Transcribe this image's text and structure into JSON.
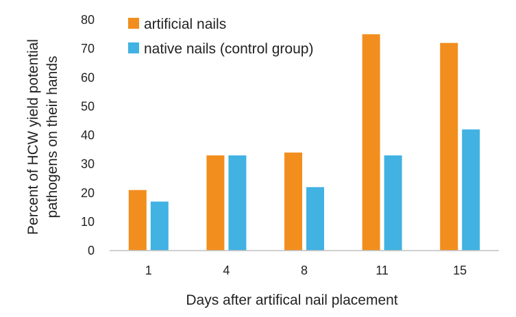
{
  "chart_data": {
    "type": "bar",
    "categories": [
      "1",
      "4",
      "8",
      "11",
      "15"
    ],
    "series": [
      {
        "name": "artificial nails",
        "values": [
          21,
          33,
          34,
          75,
          72
        ],
        "color": "#F28E1E"
      },
      {
        "name": "native nails (control group)",
        "values": [
          17,
          33,
          22,
          33,
          42
        ],
        "color": "#41B2E2"
      }
    ],
    "xlabel": "Days after artifical nail placement",
    "ylabel_lines": [
      "Percent of HCW  yield potential",
      "pathogens on their hands"
    ],
    "ylim": [
      0,
      80
    ],
    "yticks": [
      0,
      10,
      20,
      30,
      40,
      50,
      60,
      70,
      80
    ],
    "grid": false,
    "legend_position": "top-left"
  }
}
